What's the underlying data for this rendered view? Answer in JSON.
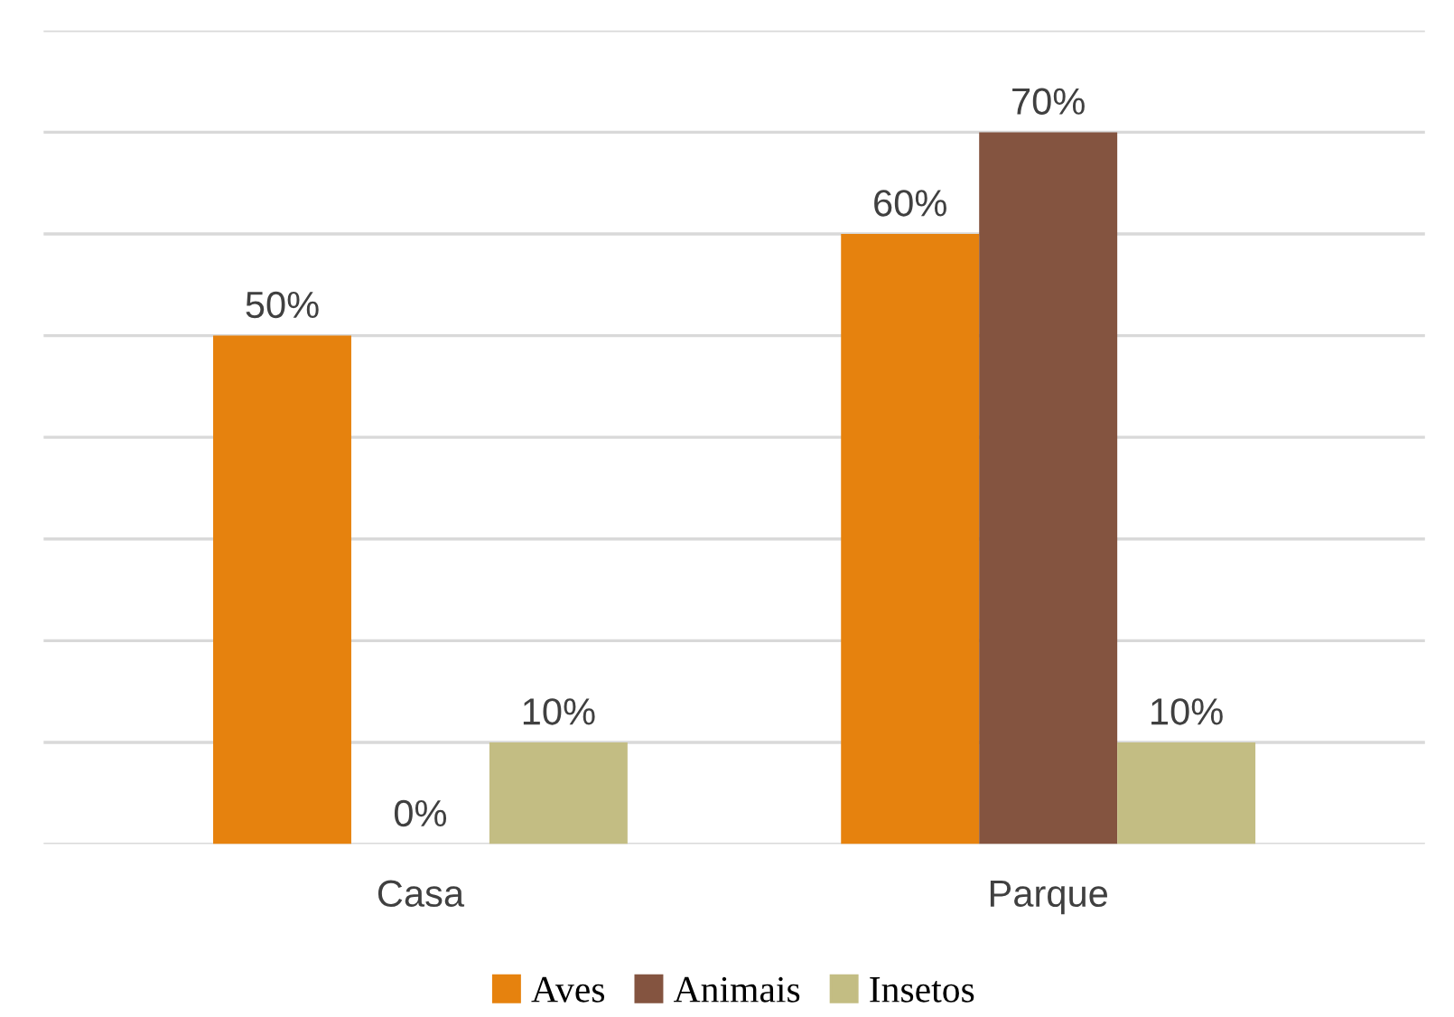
{
  "chart_data": {
    "type": "bar",
    "categories": [
      "Casa",
      "Parque"
    ],
    "series": [
      {
        "name": "Aves",
        "color": "#e6820e",
        "values": [
          50,
          60
        ],
        "value_labels": [
          "50%",
          "60%"
        ]
      },
      {
        "name": "Animais",
        "color": "#845440",
        "values": [
          0,
          70
        ],
        "value_labels": [
          "0%",
          "70%"
        ]
      },
      {
        "name": "Insetos",
        "color": "#c3bd83",
        "values": [
          10,
          10
        ],
        "value_labels": [
          "10%",
          "10%"
        ]
      }
    ],
    "ylim": [
      0,
      80
    ],
    "yticks": [
      {
        "value": 0,
        "label": null
      },
      {
        "value": 10,
        "label": null
      },
      {
        "value": 20,
        "label": null
      },
      {
        "value": 30,
        "label": null
      },
      {
        "value": 40,
        "label": null
      },
      {
        "value": 50,
        "label": null
      },
      {
        "value": 60,
        "label": null
      },
      {
        "value": 70,
        "label": null
      },
      {
        "value": 80,
        "label": null
      }
    ],
    "grid": "y",
    "tick_labels": "x",
    "legend": "bottom"
  }
}
